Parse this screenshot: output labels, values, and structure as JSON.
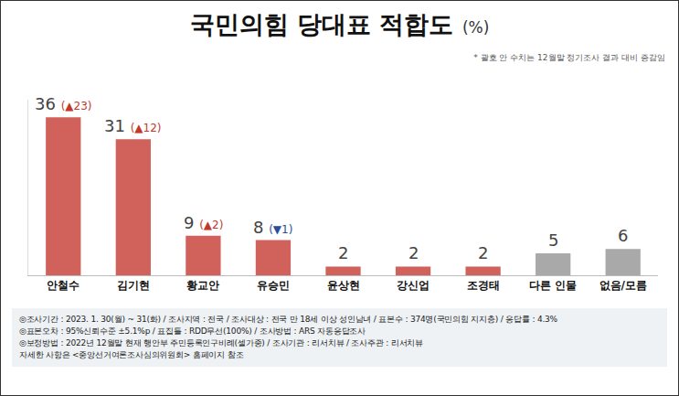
{
  "chart_data": {
    "type": "bar",
    "title": "국민의힘 당대표 적합도",
    "unit": "(%)",
    "note": "* 괄호 안 수치는 12월말 정기조사 결과 대비 증감임",
    "categories": [
      "안철수",
      "김기현",
      "황교안",
      "유승민",
      "윤상현",
      "강신업",
      "조경태",
      "다른 인물",
      "없음/모름"
    ],
    "values": [
      36,
      31,
      9,
      8,
      2,
      2,
      2,
      5,
      6
    ],
    "changes": [
      "(▲23)",
      "(▲12)",
      "(▲2)",
      "(▼1)",
      null,
      null,
      null,
      null,
      null
    ],
    "colors": [
      "#d0615b",
      "#d0615b",
      "#d0615b",
      "#d0615b",
      "#d0615b",
      "#d0615b",
      "#d0615b",
      "#a9a9a9",
      "#a9a9a9"
    ],
    "ylim": [
      0,
      40
    ],
    "yticks": [],
    "grid": false,
    "data_labels": true,
    "tick_labels": "x",
    "footnotes": [
      "◎조사기간 : 2023. 1. 30(월) ~ 31(화) / 조사지역 : 전국 / 조사대상 : 전국 만 18세 이상 성인남녀 / 표본수 : 374명(국민의힘 지지층) / 응답률 : 4.3%",
      "◎표본오차 : 95%신뢰수준 ±5.1%p  / 표집틀 : RDD무선(100%) / 조사방법 : ARS 자동응답조사",
      "◎보정방법 : 2022년 12월말 현재 행안부 주민등록인구비례(셀가중) / 조사기관 : 리서치뷰 / 조사주관 : 리서치뷰",
      "자세한 사항은 <중앙선거여론조사심의위원회> 홈페이지 참조"
    ]
  }
}
